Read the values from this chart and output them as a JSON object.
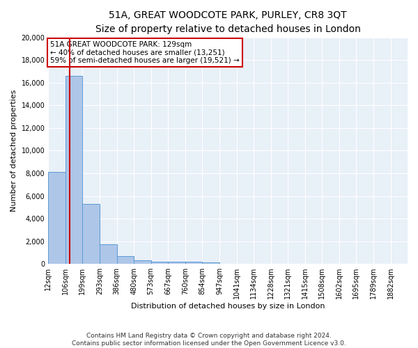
{
  "title": "51A, GREAT WOODCOTE PARK, PURLEY, CR8 3QT",
  "subtitle": "Size of property relative to detached houses in London",
  "xlabel": "Distribution of detached houses by size in London",
  "ylabel": "Number of detached properties",
  "bin_labels": [
    "12sqm",
    "106sqm",
    "199sqm",
    "293sqm",
    "386sqm",
    "480sqm",
    "573sqm",
    "667sqm",
    "760sqm",
    "854sqm",
    "947sqm",
    "1041sqm",
    "1134sqm",
    "1228sqm",
    "1321sqm",
    "1415sqm",
    "1508sqm",
    "1602sqm",
    "1695sqm",
    "1789sqm",
    "1882sqm"
  ],
  "bin_edges": [
    12,
    106,
    199,
    293,
    386,
    480,
    573,
    667,
    760,
    854,
    947,
    1041,
    1134,
    1228,
    1321,
    1415,
    1508,
    1602,
    1695,
    1789,
    1882
  ],
  "bar_heights": [
    8100,
    16600,
    5300,
    1750,
    700,
    300,
    220,
    185,
    175,
    140,
    0,
    0,
    0,
    0,
    0,
    0,
    0,
    0,
    0,
    0
  ],
  "bar_color": "#aec6e8",
  "bar_edge_color": "#5b9bd5",
  "property_line_x": 129,
  "property_line_color": "#cc0000",
  "annotation_line1": "51A GREAT WOODCOTE PARK: 129sqm",
  "annotation_line2": "← 40% of detached houses are smaller (13,251)",
  "annotation_line3": "59% of semi-detached houses are larger (19,521) →",
  "annotation_box_color": "#ffffff",
  "annotation_box_edge": "#cc0000",
  "ylim": [
    0,
    20000
  ],
  "yticks": [
    0,
    2000,
    4000,
    6000,
    8000,
    10000,
    12000,
    14000,
    16000,
    18000,
    20000
  ],
  "bg_color": "#e8f0f8",
  "fig_bg_color": "#ffffff",
  "footer_line1": "Contains HM Land Registry data © Crown copyright and database right 2024.",
  "footer_line2": "Contains public sector information licensed under the Open Government Licence v3.0.",
  "title_fontsize": 10,
  "subtitle_fontsize": 9,
  "ylabel_fontsize": 8,
  "xlabel_fontsize": 8,
  "tick_fontsize": 7,
  "annotation_fontsize": 7.5,
  "footer_fontsize": 6.5
}
